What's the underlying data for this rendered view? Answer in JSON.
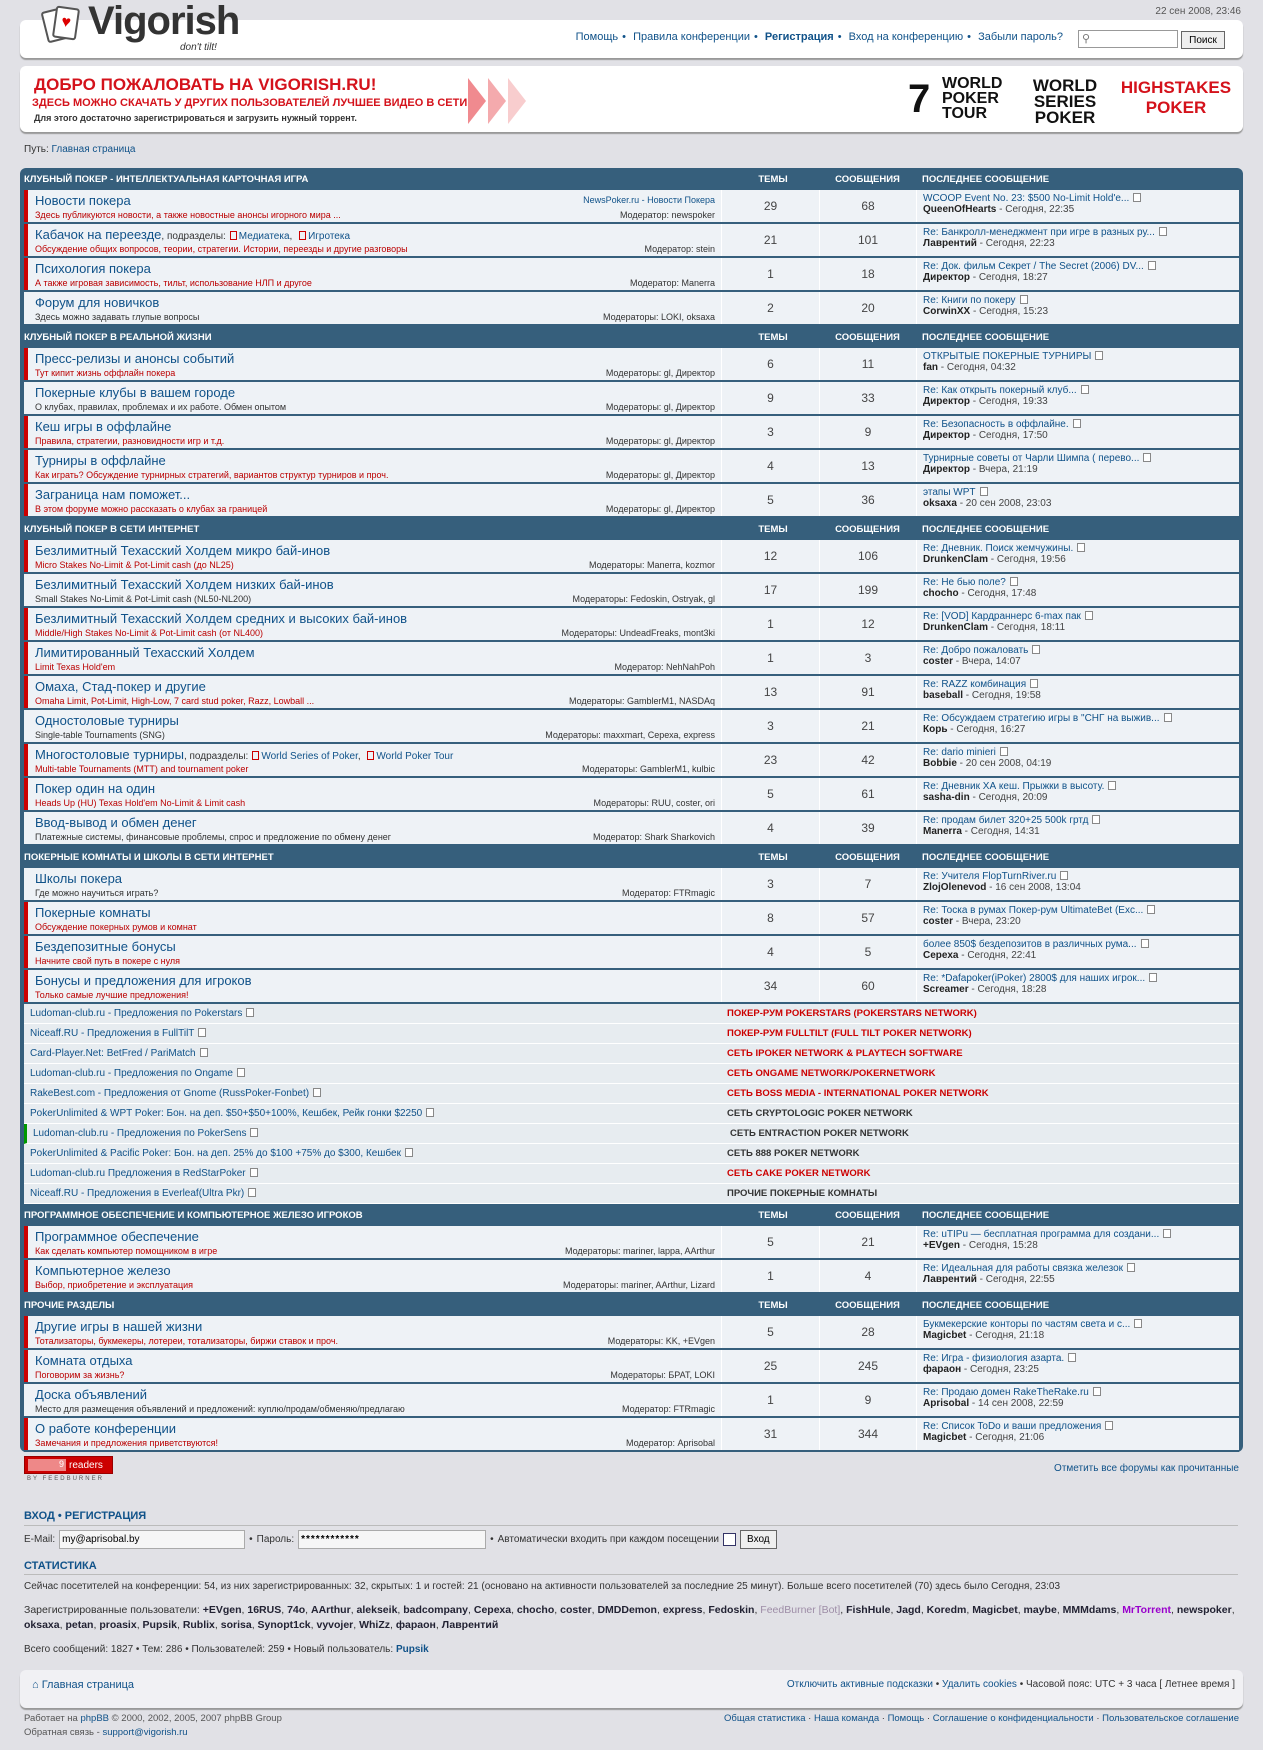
{
  "header": {
    "date": "22 сен 2008, 23:46",
    "logo": "Vigorish",
    "tagline": "don't tilt!",
    "nav": [
      "Помощь",
      "Правила конференции",
      "Регистрация",
      "Вход на конференцию",
      "Забыли пароль?"
    ],
    "search_placeholder": "",
    "search_button": "Поиск"
  },
  "banner": {
    "line1": "ДОБРО ПОЖАЛОВАТЬ НА VIGORISH.RU!",
    "line2": "ЗДЕСЬ МОЖНО СКАЧАТЬ У ДРУГИХ ПОЛЬЗОВАТЕЛЕЙ ЛУЧШЕЕ ВИДЕО В СЕТИ",
    "line3": "Для этого достаточно зарегистрироваться и загрузить нужный торрент.",
    "logos": [
      "WORLD POKER TOUR",
      "WORLD SERIES POKER",
      "HIGHSTAKES POKER"
    ]
  },
  "breadcrumb": {
    "label": "Путь:",
    "home": "Главная страница"
  },
  "columns": {
    "topics": "ТЕМЫ",
    "posts": "СООБЩЕНИЯ",
    "last": "ПОСЛЕДНЕЕ СООБЩЕНИЕ"
  },
  "subforums_label": ", подразделы:",
  "categories": [
    {
      "title": "Клубный покер - интеллектуальная карточная игра",
      "forums": [
        {
          "name": "Новости покера",
          "desc": "Здесь публикуются новости, а также новостные анонсы игорного мира ...",
          "extra": "NewsPoker.ru - Новости Покера",
          "mods": "Модератор: newspoker",
          "topics": "29",
          "posts": "68",
          "last_title": "WCOOP Event No. 23: $500 No-Limit Hold'e...",
          "last_user": "QueenOfHearts",
          "last_time": " - Сегодня, 22:35",
          "unread": true
        },
        {
          "name": "Кабачок на переезде",
          "subforums": [
            "Медиатека",
            "Игротека"
          ],
          "desc": "Обсуждение общих вопросов, теории, стратегии. Истории, переезды и другие разговоры",
          "mods": "Модератор: stein",
          "topics": "21",
          "posts": "101",
          "last_title": "Re: Банкролл-менеджмент при игре в разных ру...",
          "last_user": "Лаврентий",
          "last_time": " - Сегодня, 22:23",
          "unread": true
        },
        {
          "name": "Психология покера",
          "desc": "А также игровая зависимость, тильт, использование НЛП и другое",
          "mods": "Модератор: Manerra",
          "topics": "1",
          "posts": "18",
          "last_title": "Re: Док. фильм Секрет / The Secret (2006) DV...",
          "last_user": "Директор",
          "last_time": " - Сегодня, 18:27",
          "unread": true
        },
        {
          "name": "Форум для новичков",
          "desc": "Здесь можно задавать глупые вопросы",
          "mods": "Модераторы: LOKI, oksaxa",
          "topics": "2",
          "posts": "20",
          "last_title": "Re: Книги по покеру",
          "last_user": "CorwinXX",
          "last_time": " - Сегодня, 15:23",
          "unread": false
        }
      ]
    },
    {
      "title": "Клубный покер в реальной жизни",
      "forums": [
        {
          "name": "Пресс-релизы и анонсы событий",
          "desc": "Тут кипит жизнь оффлайн покера",
          "mods": "Модераторы: gl, Директор",
          "topics": "6",
          "posts": "11",
          "last_title": "ОТКРЫТЫЕ ПОКЕРНЫЕ ТУРНИРЫ",
          "last_user": "fan",
          "last_time": " - Сегодня, 04:32",
          "unread": true
        },
        {
          "name": "Покерные клубы в вашем городе",
          "desc": "О клубах, правилах, проблемах и их работе. Обмен опытом",
          "mods": "Модераторы: gl, Директор",
          "topics": "9",
          "posts": "33",
          "last_title": "Re: Как открыть покерный клуб...",
          "last_user": "Директор",
          "last_time": " - Сегодня, 19:33",
          "unread": false
        },
        {
          "name": "Кеш игры в оффлайне",
          "desc": "Правила, стратегии, разновидности игр и т.д.",
          "mods": "Модераторы: gl, Директор",
          "topics": "3",
          "posts": "9",
          "last_title": "Re: Безопасность в оффлайне.",
          "last_user": "Директор",
          "last_time": " - Сегодня, 17:50",
          "unread": true
        },
        {
          "name": "Турниры в оффлайне",
          "desc": "Как играть? Обсуждение турнирных стратегий, вариантов структур турниров и проч.",
          "mods": "Модераторы: gl, Директор",
          "topics": "4",
          "posts": "13",
          "last_title": "Турнирные советы от Чарли Шимпа ( перево...",
          "last_user": "Директор",
          "last_time": " - Вчера, 21:19",
          "unread": true
        },
        {
          "name": "Заграница нам поможет...",
          "desc": "В этом форуме можно рассказать о клубах за границей",
          "mods": "Модераторы: gl, Директор",
          "topics": "5",
          "posts": "36",
          "last_title": "этапы WPT",
          "last_user": "oksaxa",
          "last_time": " - 20 сен 2008, 23:03",
          "unread": true
        }
      ]
    },
    {
      "title": "Клубный покер в сети интернет",
      "forums": [
        {
          "name": "Безлимитный Техасский Холдем микро бай-инов",
          "desc": "Micro Stakes No-Limit & Pot-Limit cash (до NL25)",
          "mods": "Модераторы: Manerra, kozmor",
          "topics": "12",
          "posts": "106",
          "last_title": "Re: Дневник. Поиск жемчужины.",
          "last_user": "DrunkenClam",
          "last_time": " - Сегодня, 19:56",
          "unread": true
        },
        {
          "name": "Безлимитный Техасский Холдем низких бай-инов",
          "desc": "Small Stakes No-Limit & Pot-Limit cash (NL50-NL200)",
          "mods": "Модераторы: Fedoskin, Ostryak, gl",
          "topics": "17",
          "posts": "199",
          "last_title": "Re: Не бью поле?",
          "last_user": "chocho",
          "last_time": " - Сегодня, 17:48",
          "unread": false
        },
        {
          "name": "Безлимитный Техасский Холдем средних и высоких бай-инов",
          "desc": "Middle/High Stakes No-Limit & Pot-Limit cash (от NL400)",
          "mods": "Модераторы: UndeadFreaks, mont3ki",
          "topics": "1",
          "posts": "12",
          "last_title": "Re: [VOD] Кардраннерс 6-max пак",
          "last_user": "DrunkenClam",
          "last_time": " - Сегодня, 18:11",
          "unread": true
        },
        {
          "name": "Лимитированный Техасский Холдем",
          "desc": "Limit Texas Hold'em",
          "mods": "Модератор: NehNahPoh",
          "topics": "1",
          "posts": "3",
          "last_title": "Re: Добро пожаловать",
          "last_user": "coster",
          "last_time": " - Вчера, 14:07",
          "unread": true
        },
        {
          "name": "Омаха, Стад-покер и другие",
          "desc": "Omaha Limit, Pot-Limit, High-Low, 7 card stud poker, Razz, Lowball ...",
          "mods": "Модераторы: GamblerM1, NASDAq",
          "topics": "13",
          "posts": "91",
          "last_title": "Re: RAZZ комбинация",
          "last_user": "baseball",
          "last_time": " - Сегодня, 19:58",
          "unread": true
        },
        {
          "name": "Одностоловые турниры",
          "desc": "Single-table Tournaments (SNG)",
          "mods": "Модераторы: maxxmart, Сереха, express",
          "topics": "3",
          "posts": "21",
          "last_title": "Re: Обсуждаем стратегию игры в \"СНГ на выжив...",
          "last_user": "Корь",
          "last_time": " - Сегодня, 16:27",
          "unread": false
        },
        {
          "name": "Многостоловые турниры",
          "subforums": [
            "World Series of Poker",
            "World Poker Tour"
          ],
          "desc": "Multi-table Tournaments (MTT) and tournament poker",
          "mods": "Модераторы: GamblerM1, kulbic",
          "topics": "23",
          "posts": "42",
          "last_title": "Re: dario minieri",
          "last_user": "Bobbie",
          "last_time": " - 20 сен 2008, 04:19",
          "unread": true
        },
        {
          "name": "Покер один на один",
          "desc": "Heads Up (HU) Texas Hold'em No-Limit & Limit cash",
          "mods": "Модераторы: RUU, coster, ori",
          "topics": "5",
          "posts": "61",
          "last_title": "Re: Дневник ХА кеш. Прыжки в высоту.",
          "last_user": "sasha-din",
          "last_time": " - Сегодня, 20:09",
          "unread": true
        },
        {
          "name": "Ввод-вывод и обмен денег",
          "desc": "Платежные системы, финансовые проблемы, спрос и предложение по обмену денег",
          "mods": "Модератор: Shark Sharkovich",
          "topics": "4",
          "posts": "39",
          "last_title": "Re: продам билет 320+25 500k гртд",
          "last_user": "Manerra",
          "last_time": " - Сегодня, 14:31",
          "unread": false
        }
      ]
    },
    {
      "title": "Покерные комнаты и школы в сети интернет",
      "forums": [
        {
          "name": "Школы покера",
          "desc": "Где можно научиться играть?",
          "mods": "Модератор: FTRmagic",
          "topics": "3",
          "posts": "7",
          "last_title": "Re: Учителя FlopTurnRiver.ru",
          "last_user": "ZlojOlenevod",
          "last_time": " - 16 сен 2008, 13:04",
          "unread": false
        },
        {
          "name": "Покерные комнаты",
          "desc": "Обсуждение покерных румов и комнат",
          "mods": "",
          "topics": "8",
          "posts": "57",
          "last_title": "Re: Тоска в румах Покер-рум UltimateBet (Exc...",
          "last_user": "coster",
          "last_time": " - Вчера, 23:20",
          "unread": true
        },
        {
          "name": "Бездепозитные бонусы",
          "desc": "Начните свой путь в покере с нуля",
          "mods": "",
          "topics": "4",
          "posts": "5",
          "last_title": "более 850$ бездепозитов в различных рума...",
          "last_user": "Сереха",
          "last_time": " - Сегодня, 22:41",
          "unread": true
        },
        {
          "name": "Бонусы и предложения для игроков",
          "desc": "Только самые лучшие предложения!",
          "mods": "",
          "topics": "34",
          "posts": "60",
          "last_title": "Re: *Dafapoker(iPoker) 2800$ для наших игрок...",
          "last_user": "Screamer",
          "last_time": " - Сегодня, 18:28",
          "unread": true
        }
      ],
      "links": [
        {
          "left": "Ludoman-club.ru - Предложения по Pokerstars",
          "color": "red",
          "right": "ПОКЕР-РУМ POKERSTARS (POKERSTARS NETWORK)",
          "right_red": true
        },
        {
          "left": "Niceaff.RU - Предложения в FullTilT",
          "color": "blue",
          "right": "ПОКЕР-РУМ FULLTILT (FULL TILT POKER NETWORK)",
          "right_red": true
        },
        {
          "left": "Card-Player.Net: BetFred / PariMatch",
          "color": "blue",
          "right": "СЕТЬ IPOKER NETWORK & PLAYTECH SOFTWARE",
          "right_red": true
        },
        {
          "left": "Ludoman-club.ru - Предложения по Ongame",
          "color": "blue",
          "right": "СЕТЬ ONGAME NETWORK/POKERNETWORK",
          "right_red": true
        },
        {
          "left": "RakeBest.com - Предложения от Gnome (RussPoker-Fonbet)",
          "color": "red",
          "right": "СЕТЬ BOSS MEDIA - INTERNATIONAL POKER NETWORK",
          "right_red": true
        },
        {
          "left": "PokerUnlimited & WPT Poker: Бон. на деп. $50+$50+100%, Кешбек, Рейк гонки $2250",
          "color": "blue",
          "right": "СЕТЬ CRYPTOLOGIC POKER NETWORK",
          "right_red": false
        },
        {
          "left": "Ludoman-club.ru - Предложения по PokerSens",
          "color": "green",
          "right": "СЕТЬ ENTRACTION POKER NETWORK",
          "right_red": false
        },
        {
          "left": "PokerUnlimited & Pacific Poker: Бон. на деп. 25% до $100 +75% до $300, Кешбек",
          "color": "blue",
          "right": "СЕТЬ 888 POKER NETWORK",
          "right_red": false
        },
        {
          "left": "Ludoman-club.ru Предложения в RedStarPoker",
          "color": "blue",
          "right": "СЕТЬ CAKE POKER NETWORK",
          "right_red": true
        },
        {
          "left": "Niceaff.RU - Предложения в Everleaf(Ultra Pkr)",
          "color": "blue",
          "right": "ПРОЧИЕ ПОКЕРНЫЕ КОМНАТЫ",
          "right_red": false
        }
      ]
    },
    {
      "title": "Программное обеспечение и компьютерное железо игроков",
      "forums": [
        {
          "name": "Программное обеспечение",
          "desc": "Как сделать компьютер помощником в игре",
          "mods": "Модераторы: mariner, lappa, AArthur",
          "topics": "5",
          "posts": "21",
          "last_title": "Re: uTIPu — бесплатная программа для создани...",
          "last_user": "+EVgen",
          "last_time": " - Сегодня, 15:28",
          "unread": true
        },
        {
          "name": "Компьютерное железо",
          "desc": "Выбор, приобретение и эксплуатация",
          "mods": "Модераторы: mariner, AArthur, Lizard",
          "topics": "1",
          "posts": "4",
          "last_title": "Re: Идеальная для работы связка железок",
          "last_user": "Лаврентий",
          "last_time": " - Сегодня, 22:55",
          "unread": true
        }
      ]
    },
    {
      "title": "Прочие разделы",
      "forums": [
        {
          "name": "Другие игры в нашей жизни",
          "desc": "Тотализаторы, букмекеры, лотереи, тотализаторы, биржи ставок и проч.",
          "mods": "Модераторы: KK, +EVgen",
          "topics": "5",
          "posts": "28",
          "last_title": "Букмекерские конторы по частям света и с...",
          "last_user": "Magicbet",
          "last_time": " - Сегодня, 21:18",
          "unread": true
        },
        {
          "name": "Комната отдыха",
          "desc": "Поговорим за жизнь?",
          "mods": "Модераторы: БРАТ, LOKI",
          "topics": "25",
          "posts": "245",
          "last_title": "Re: Игра - физиология азарта.",
          "last_user": "фараон",
          "last_time": " - Сегодня, 23:25",
          "unread": true
        },
        {
          "name": "Доска объявлений",
          "desc": "Место для размещения объявлений и предложений: куплю/продам/обменяю/предлагаю",
          "mods": "Модератор: FTRmagic",
          "topics": "1",
          "posts": "9",
          "last_title": "Re: Продаю домен RakeTheRake.ru",
          "last_user": "Aprisobal",
          "last_time": " - 14 сен 2008, 22:59",
          "unread": false
        },
        {
          "name": "О работе конференции",
          "desc": "Замечания и предложения приветствуются!",
          "mods": "Модератор: Aprisobal",
          "topics": "31",
          "posts": "344",
          "last_title": "Re: Список ToDo и ваши предложения",
          "last_user": "Magicbet",
          "last_time": " - Сегодня, 21:06",
          "unread": true
        }
      ]
    }
  ],
  "feedburner": {
    "count": "9",
    "label": "readers",
    "by": "BY FEEDBURNER"
  },
  "mark_read": "Отметить все форумы как прочитанные",
  "login": {
    "login_label": "Вход",
    "register_label": "Регистрация",
    "email_label": "E-Mail:",
    "email_value": "my@aprisobal.by",
    "password_label": "Пароль:",
    "password_value": "************",
    "auto_label": "Автоматически входить при каждом посещении",
    "submit": "Вход"
  },
  "stats": {
    "heading": "Статистика",
    "online": "Сейчас посетителей на конференции: 54, из них зарегистрированных: 32, скрытых: 1 и гостей: 21 (основано на активности пользователей за последние 25 минут). Больше всего посетителей (70) здесь было Сегодня, 23:03",
    "registered_label": "Зарегистрированные пользователи:",
    "users": [
      "+EVgen",
      "16RUS",
      "74o",
      "AArthur",
      "alekseik",
      "badcompany",
      "Сереха",
      "chocho",
      "coster",
      "DMDDemon",
      "express",
      "Fedoskin",
      "FeedBurner [Bot]",
      "FishHule",
      "Jagd",
      "Koredm",
      "Magicbet",
      "maybe",
      "MMMdams",
      "MrTorrent",
      "newspoker",
      "oksaxa",
      "petan",
      "proasix",
      "Pupsik",
      "Rublix",
      "sorisa",
      "Synopt1ck",
      "vyvojer",
      "WhiZz",
      "фараон",
      "Лаврентий"
    ],
    "bot_color": "#9e8da7",
    "special_color": "#9900cc",
    "totals": "Всего сообщений: 1827 • Тем: 286 • Пользователей: 259 • Новый пользователь: ",
    "newest": "Pupsik"
  },
  "footer": {
    "home": "Главная страница",
    "links": [
      "Отключить активные подсказки",
      "Удалить cookies"
    ],
    "timezone": "Часовой пояс: UTC + 3 часа [ Летнее время ]",
    "powered": "Работает на",
    "phpbb": "phpBB",
    "copyright": "© 2000, 2002, 2005, 2007 phpBB Group",
    "feedback": "Обратная связь -",
    "email": "support@vigorish.ru",
    "bottom_links": [
      "Общая статистика",
      "Наша команда",
      "Помощь",
      "Соглашение о конфиденциальности",
      "Пользовательское соглашение"
    ]
  },
  "colors": {
    "accent": "#365f7c",
    "unread": "#cc0000",
    "link": "#105289"
  }
}
